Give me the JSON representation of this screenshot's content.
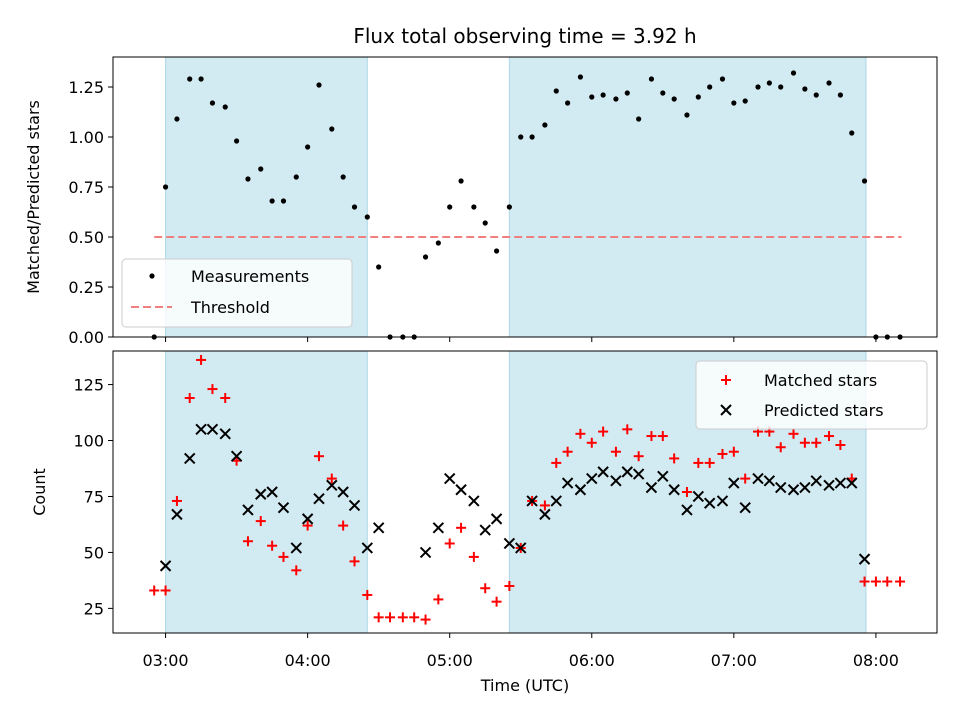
{
  "chart_data": {
    "title": "Flux total observing time = 3.92 h",
    "xlabel": "Time (UTC)",
    "x_ticks": [
      {
        "hour": 3,
        "label": "03:00"
      },
      {
        "hour": 4,
        "label": "04:00"
      },
      {
        "hour": 5,
        "label": "05:00"
      },
      {
        "hour": 6,
        "label": "06:00"
      },
      {
        "hour": 7,
        "label": "07:00"
      },
      {
        "hour": 8,
        "label": "08:00"
      }
    ],
    "xlim_hours": [
      2.63,
      8.43
    ],
    "shaded_regions_hours": [
      [
        3.0,
        4.42
      ],
      [
        5.42,
        7.93
      ]
    ],
    "shade_color": "#add8e6",
    "top": {
      "type": "scatter",
      "ylabel": "Matched/Predicted stars",
      "ylim": [
        0,
        1.4
      ],
      "y_ticks": [
        "0.00",
        "0.25",
        "0.50",
        "0.75",
        "1.00",
        "1.25"
      ],
      "y_tick_values": [
        0,
        0.25,
        0.5,
        0.75,
        1.0,
        1.25
      ],
      "threshold": {
        "name": "Threshold",
        "value": 0.5,
        "x_range_hours": [
          2.92,
          8.18
        ],
        "color": "#f08080"
      },
      "legend": [
        "Measurements",
        "Threshold"
      ],
      "legend_position": "lower-left",
      "series": [
        {
          "name": "Measurements",
          "color": "#000000",
          "points": [
            [
              2.92,
              0.0
            ],
            [
              3.0,
              0.75
            ],
            [
              3.08,
              1.09
            ],
            [
              3.17,
              1.29
            ],
            [
              3.25,
              1.29
            ],
            [
              3.33,
              1.17
            ],
            [
              3.42,
              1.15
            ],
            [
              3.5,
              0.98
            ],
            [
              3.58,
              0.79
            ],
            [
              3.67,
              0.84
            ],
            [
              3.75,
              0.68
            ],
            [
              3.83,
              0.68
            ],
            [
              3.92,
              0.8
            ],
            [
              4.0,
              0.95
            ],
            [
              4.08,
              1.26
            ],
            [
              4.17,
              1.04
            ],
            [
              4.25,
              0.8
            ],
            [
              4.33,
              0.65
            ],
            [
              4.42,
              0.6
            ],
            [
              4.5,
              0.35
            ],
            [
              4.58,
              0.0
            ],
            [
              4.67,
              0.0
            ],
            [
              4.75,
              0.0
            ],
            [
              4.83,
              0.4
            ],
            [
              4.92,
              0.47
            ],
            [
              5.0,
              0.65
            ],
            [
              5.08,
              0.78
            ],
            [
              5.17,
              0.65
            ],
            [
              5.25,
              0.57
            ],
            [
              5.33,
              0.43
            ],
            [
              5.42,
              0.65
            ],
            [
              5.5,
              1.0
            ],
            [
              5.58,
              1.0
            ],
            [
              5.67,
              1.06
            ],
            [
              5.75,
              1.23
            ],
            [
              5.83,
              1.17
            ],
            [
              5.92,
              1.3
            ],
            [
              6.0,
              1.2
            ],
            [
              6.08,
              1.21
            ],
            [
              6.17,
              1.19
            ],
            [
              6.25,
              1.22
            ],
            [
              6.33,
              1.09
            ],
            [
              6.42,
              1.29
            ],
            [
              6.5,
              1.22
            ],
            [
              6.58,
              1.19
            ],
            [
              6.67,
              1.11
            ],
            [
              6.75,
              1.2
            ],
            [
              6.83,
              1.25
            ],
            [
              6.92,
              1.29
            ],
            [
              7.0,
              1.17
            ],
            [
              7.08,
              1.18
            ],
            [
              7.17,
              1.25
            ],
            [
              7.25,
              1.27
            ],
            [
              7.33,
              1.25
            ],
            [
              7.42,
              1.32
            ],
            [
              7.5,
              1.24
            ],
            [
              7.58,
              1.21
            ],
            [
              7.67,
              1.27
            ],
            [
              7.75,
              1.21
            ],
            [
              7.83,
              1.02
            ],
            [
              7.92,
              0.78
            ],
            [
              8.0,
              0.0
            ],
            [
              8.08,
              0.0
            ],
            [
              8.17,
              0.0
            ]
          ]
        }
      ]
    },
    "bottom": {
      "type": "scatter",
      "ylabel": "Count",
      "ylim": [
        14,
        140
      ],
      "y_ticks": [
        "25",
        "50",
        "75",
        "100",
        "125"
      ],
      "y_tick_values": [
        25,
        50,
        75,
        100,
        125
      ],
      "legend": [
        "Matched stars",
        "Predicted stars"
      ],
      "legend_position": "top-right",
      "series": [
        {
          "name": "Matched stars",
          "marker": "plus",
          "color": "#ff0000",
          "points": [
            [
              2.92,
              33
            ],
            [
              3.0,
              33
            ],
            [
              3.08,
              73
            ],
            [
              3.17,
              119
            ],
            [
              3.25,
              136
            ],
            [
              3.33,
              123
            ],
            [
              3.42,
              119
            ],
            [
              3.5,
              91
            ],
            [
              3.58,
              55
            ],
            [
              3.67,
              64
            ],
            [
              3.75,
              53
            ],
            [
              3.83,
              48
            ],
            [
              3.92,
              42
            ],
            [
              4.0,
              62
            ],
            [
              4.08,
              93
            ],
            [
              4.17,
              83
            ],
            [
              4.25,
              62
            ],
            [
              4.33,
              46
            ],
            [
              4.42,
              31
            ],
            [
              4.5,
              21
            ],
            [
              4.58,
              21
            ],
            [
              4.67,
              21
            ],
            [
              4.75,
              21
            ],
            [
              4.83,
              20
            ],
            [
              4.92,
              29
            ],
            [
              5.0,
              54
            ],
            [
              5.08,
              61
            ],
            [
              5.17,
              48
            ],
            [
              5.25,
              34
            ],
            [
              5.33,
              28
            ],
            [
              5.42,
              35
            ],
            [
              5.5,
              52
            ],
            [
              5.58,
              73
            ],
            [
              5.67,
              71
            ],
            [
              5.75,
              90
            ],
            [
              5.83,
              95
            ],
            [
              5.92,
              103
            ],
            [
              6.0,
              99
            ],
            [
              6.08,
              104
            ],
            [
              6.17,
              95
            ],
            [
              6.25,
              105
            ],
            [
              6.33,
              93
            ],
            [
              6.42,
              102
            ],
            [
              6.5,
              102
            ],
            [
              6.58,
              92
            ],
            [
              6.67,
              77
            ],
            [
              6.75,
              90
            ],
            [
              6.83,
              90
            ],
            [
              6.92,
              94
            ],
            [
              7.0,
              95
            ],
            [
              7.08,
              83
            ],
            [
              7.17,
              104
            ],
            [
              7.25,
              104
            ],
            [
              7.33,
              97
            ],
            [
              7.42,
              103
            ],
            [
              7.5,
              99
            ],
            [
              7.58,
              99
            ],
            [
              7.67,
              102
            ],
            [
              7.75,
              98
            ],
            [
              7.83,
              83
            ],
            [
              7.92,
              37
            ],
            [
              8.0,
              37
            ],
            [
              8.08,
              37
            ],
            [
              8.17,
              37
            ]
          ]
        },
        {
          "name": "Predicted stars",
          "marker": "x",
          "color": "#000000",
          "points": [
            [
              3.0,
              44
            ],
            [
              3.08,
              67
            ],
            [
              3.17,
              92
            ],
            [
              3.25,
              105
            ],
            [
              3.33,
              105
            ],
            [
              3.42,
              103
            ],
            [
              3.5,
              93
            ],
            [
              3.58,
              69
            ],
            [
              3.67,
              76
            ],
            [
              3.75,
              77
            ],
            [
              3.83,
              70
            ],
            [
              3.92,
              52
            ],
            [
              4.0,
              65
            ],
            [
              4.08,
              74
            ],
            [
              4.17,
              80
            ],
            [
              4.25,
              77
            ],
            [
              4.33,
              71
            ],
            [
              4.42,
              52
            ],
            [
              4.5,
              61
            ],
            [
              4.83,
              50
            ],
            [
              4.92,
              61
            ],
            [
              5.0,
              83
            ],
            [
              5.08,
              78
            ],
            [
              5.17,
              73
            ],
            [
              5.25,
              60
            ],
            [
              5.33,
              65
            ],
            [
              5.42,
              54
            ],
            [
              5.5,
              52
            ],
            [
              5.58,
              73
            ],
            [
              5.67,
              67
            ],
            [
              5.75,
              73
            ],
            [
              5.83,
              81
            ],
            [
              5.92,
              78
            ],
            [
              6.0,
              83
            ],
            [
              6.08,
              86
            ],
            [
              6.17,
              82
            ],
            [
              6.25,
              86
            ],
            [
              6.33,
              85
            ],
            [
              6.42,
              79
            ],
            [
              6.5,
              84
            ],
            [
              6.58,
              78
            ],
            [
              6.67,
              69
            ],
            [
              6.75,
              75
            ],
            [
              6.83,
              72
            ],
            [
              6.92,
              73
            ],
            [
              7.0,
              81
            ],
            [
              7.08,
              70
            ],
            [
              7.17,
              83
            ],
            [
              7.25,
              82
            ],
            [
              7.33,
              79
            ],
            [
              7.42,
              78
            ],
            [
              7.5,
              79
            ],
            [
              7.58,
              82
            ],
            [
              7.67,
              80
            ],
            [
              7.75,
              81
            ],
            [
              7.83,
              81
            ],
            [
              7.92,
              47
            ]
          ]
        }
      ]
    }
  }
}
